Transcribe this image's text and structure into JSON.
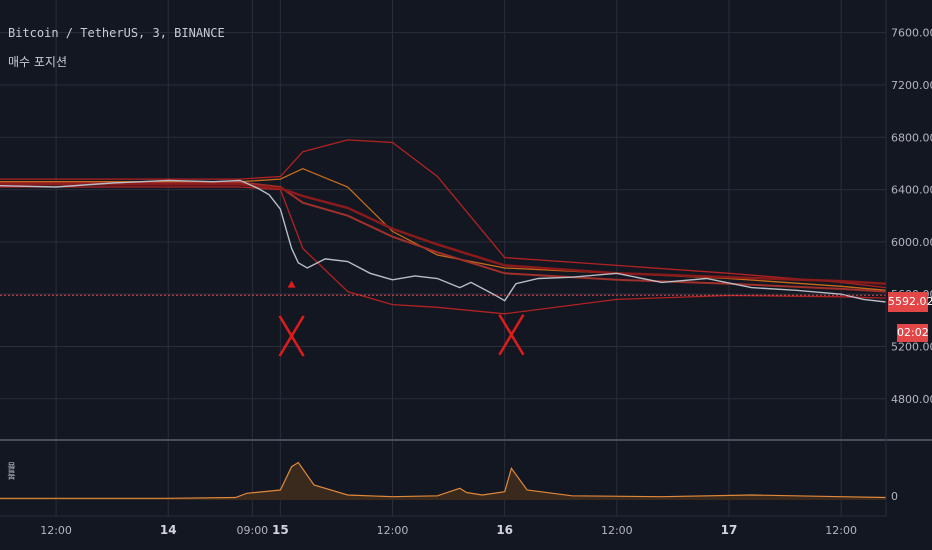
{
  "header": {
    "title": "Bitcoin / TetherUS, 3, BINANCE",
    "subtitle": "매수 포지션"
  },
  "volume_pane": {
    "label": "볼륨",
    "axis_value": "0"
  },
  "price_tag": {
    "value": "5592.02",
    "countdown": "02:02",
    "color": "#e24646"
  },
  "colors": {
    "background": "#131722",
    "grid": "#2a2e39",
    "price_line": "#b8bcc6",
    "band_dark": "#8b1a1a",
    "band_orange": "#c76b1a",
    "band_red": "#b22222",
    "marker": "#e01b1b",
    "volume": "#e0883a"
  },
  "chart_data": {
    "type": "line",
    "title": "Bitcoin / TetherUS, 3, BINANCE",
    "y_axis": {
      "ticks": [
        "7600.00",
        "7200.00",
        "6800.00",
        "6400.00",
        "6000.00",
        "5600.00",
        "5200.00",
        "4800.00"
      ],
      "tick_values": [
        7600,
        7200,
        6800,
        6400,
        6000,
        5600,
        5200,
        4800
      ],
      "range": [
        4500,
        7850
      ]
    },
    "x_axis": {
      "ticks": [
        "12:00",
        "14",
        "09:00",
        "15",
        "12:00",
        "16",
        "12:00",
        "17",
        "12:00"
      ],
      "tick_positions": [
        0.5,
        1.0,
        1.375,
        1.5,
        2.0,
        2.5,
        3.0,
        3.5,
        4.0
      ],
      "range": [
        0.25,
        4.2
      ]
    },
    "series": [
      {
        "role": "price",
        "x": [
          0.25,
          0.5,
          0.75,
          1.0,
          1.2,
          1.32,
          1.4,
          1.45,
          1.5,
          1.55,
          1.58,
          1.62,
          1.7,
          1.8,
          1.9,
          2.0,
          2.1,
          2.2,
          2.3,
          2.35,
          2.45,
          2.5,
          2.55,
          2.65,
          2.8,
          3.0,
          3.2,
          3.4,
          3.6,
          3.8,
          4.0,
          4.1,
          4.2
        ],
        "values": [
          6430,
          6420,
          6450,
          6470,
          6460,
          6470,
          6410,
          6360,
          6250,
          5950,
          5840,
          5800,
          5870,
          5850,
          5760,
          5710,
          5740,
          5720,
          5650,
          5690,
          5600,
          5550,
          5680,
          5720,
          5730,
          5760,
          5690,
          5720,
          5650,
          5630,
          5600,
          5560,
          5540
        ]
      },
      {
        "role": "band-upper",
        "x": [
          0.25,
          1.0,
          1.32,
          1.5,
          1.6,
          1.8,
          2.0,
          2.2,
          2.5,
          3.0,
          3.5,
          4.0,
          4.2
        ],
        "values": [
          6480,
          6480,
          6480,
          6500,
          6690,
          6780,
          6760,
          6500,
          5880,
          5820,
          5760,
          5690,
          5650
        ]
      },
      {
        "role": "band-lower",
        "x": [
          0.25,
          1.0,
          1.32,
          1.5,
          1.6,
          1.8,
          2.0,
          2.2,
          2.5,
          3.0,
          3.5,
          4.0,
          4.2
        ],
        "values": [
          6420,
          6420,
          6420,
          6400,
          5950,
          5620,
          5520,
          5500,
          5450,
          5560,
          5590,
          5580,
          5570
        ]
      },
      {
        "role": "ma-orange",
        "x": [
          0.25,
          1.0,
          1.32,
          1.5,
          1.6,
          1.8,
          2.0,
          2.2,
          2.5,
          3.0,
          3.5,
          4.0,
          4.2
        ],
        "values": [
          6460,
          6460,
          6460,
          6480,
          6560,
          6420,
          6080,
          5900,
          5800,
          5760,
          5720,
          5660,
          5630
        ]
      },
      {
        "role": "ma-mid",
        "x": [
          0.25,
          1.0,
          1.32,
          1.5,
          1.6,
          1.8,
          2.0,
          2.2,
          2.5,
          3.0,
          3.5,
          4.0,
          4.2
        ],
        "values": [
          6450,
          6450,
          6455,
          6420,
          6300,
          6200,
          6040,
          5920,
          5760,
          5710,
          5680,
          5640,
          5620
        ]
      },
      {
        "role": "ma-dark",
        "x": [
          0.25,
          1.0,
          1.32,
          1.5,
          1.6,
          1.8,
          2.0,
          2.2,
          2.5,
          3.0,
          3.5,
          4.0,
          4.2
        ],
        "values": [
          6440,
          6440,
          6440,
          6410,
          6350,
          6260,
          6100,
          5980,
          5820,
          5760,
          5730,
          5700,
          5680
        ]
      }
    ],
    "volume": {
      "x": [
        0.25,
        1.0,
        1.3,
        1.35,
        1.5,
        1.55,
        1.58,
        1.65,
        1.8,
        2.0,
        2.2,
        2.3,
        2.33,
        2.4,
        2.5,
        2.53,
        2.6,
        2.8,
        3.2,
        3.6,
        4.0,
        4.2
      ],
      "values": [
        2,
        2,
        3,
        8,
        12,
        40,
        45,
        18,
        6,
        4,
        5,
        14,
        9,
        6,
        10,
        38,
        12,
        5,
        4,
        6,
        4,
        3
      ],
      "max": 60
    },
    "markers": [
      {
        "type": "triangle-up",
        "x": 1.55,
        "y": 5650
      },
      {
        "type": "x",
        "x": 1.55,
        "y": 5280
      },
      {
        "type": "x",
        "x": 2.53,
        "y": 5290
      }
    ]
  }
}
